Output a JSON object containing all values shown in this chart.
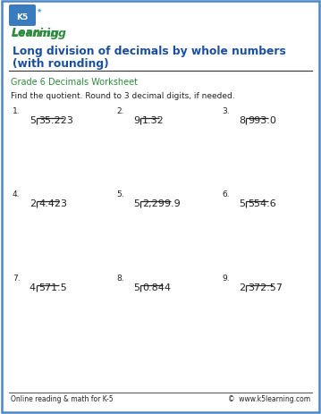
{
  "title_line1": "Long division of decimals by whole numbers",
  "title_line2": "(with rounding)",
  "subtitle": "Grade 6 Decimals Worksheet",
  "instruction": "Find the quotient. Round to 3 decimal digits, if needed.",
  "problems": [
    {
      "num": "1.",
      "divisor": "5",
      "dividend": "35.223"
    },
    {
      "num": "2.",
      "divisor": "9",
      "dividend": "1.32"
    },
    {
      "num": "3.",
      "divisor": "8",
      "dividend": "993.0"
    },
    {
      "num": "4.",
      "divisor": "2",
      "dividend": "4.423"
    },
    {
      "num": "5.",
      "divisor": "5",
      "dividend": "2,299.9"
    },
    {
      "num": "6.",
      "divisor": "5",
      "dividend": "554.6"
    },
    {
      "num": "7.",
      "divisor": "4",
      "dividend": "571.5"
    },
    {
      "num": "8.",
      "divisor": "5",
      "dividend": "0.844"
    },
    {
      "num": "9.",
      "divisor": "2",
      "dividend": "372.57"
    }
  ],
  "footer_left": "Online reading & math for K-5",
  "footer_right": "©  www.k5learning.com",
  "border_color": "#4a86c8",
  "title_color": "#1a4fa0",
  "subtitle_color": "#2e8b3e",
  "body_text_color": "#222222",
  "bg_color": "#ffffff"
}
